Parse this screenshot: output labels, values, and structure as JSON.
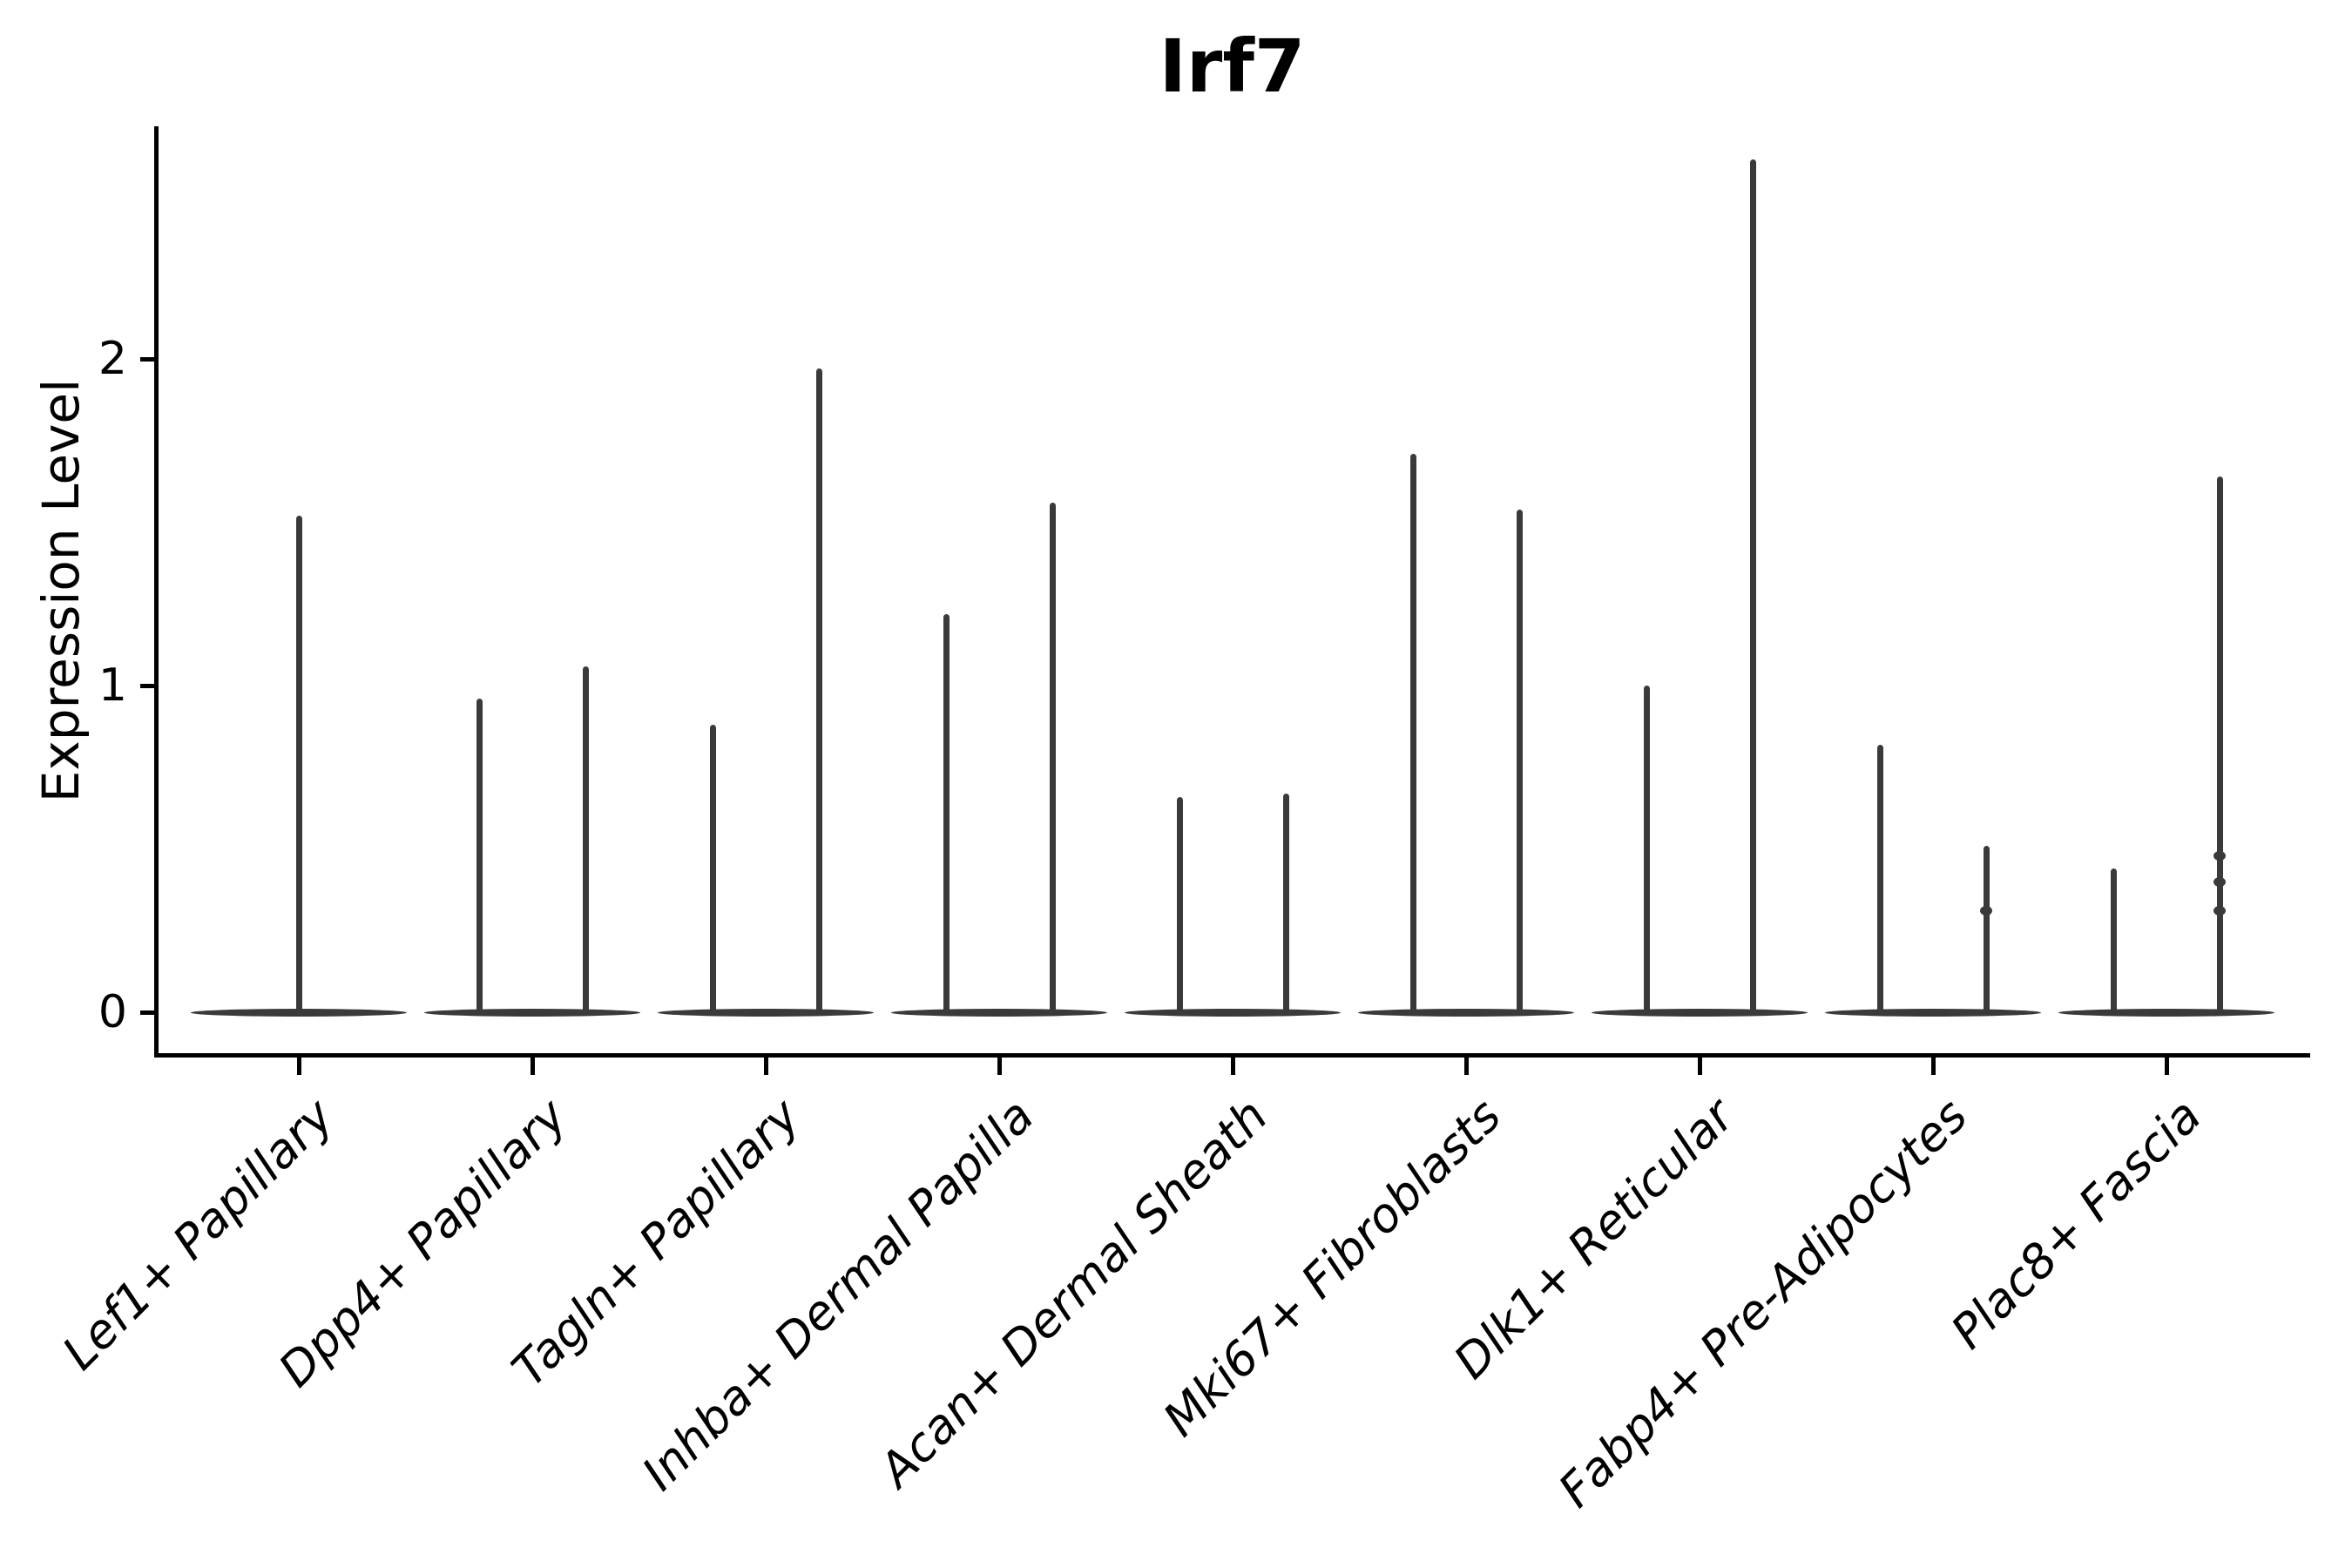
{
  "title": "Irf7",
  "y_axis": {
    "label": "Expression Level",
    "tick_labels": [
      "0",
      "1",
      "2"
    ]
  },
  "x_axis": {
    "tick_labels": [
      "Lef1+ Papillary",
      "Dpp4+ Papillary",
      "Tagln+ Papillary",
      "Inhba+ Dermal Papilla",
      "Acan+ Dermal Sheath",
      "Mki67+ Fibroblasts",
      "Dlk1+ Reticular",
      "Fabp4+ Pre-Adipocytes",
      "Plac8+ Fascia"
    ]
  },
  "chart_data": {
    "type": "violin",
    "title": "Irf7",
    "xlabel": "",
    "ylabel": "Expression Level",
    "ylim": [
      -0.12,
      2.72
    ],
    "yticks": [
      0,
      1,
      2
    ],
    "grid": false,
    "legend": false,
    "categories": [
      "Lef1+ Papillary",
      "Dpp4+ Papillary",
      "Tagln+ Papillary",
      "Inhba+ Dermal Papilla",
      "Acan+ Dermal Sheath",
      "Mki67+ Fibroblasts",
      "Dlk1+ Reticular",
      "Fabp4+ Pre-Adipocytes",
      "Plac8+ Fascia"
    ],
    "baseline_value": 0,
    "violins": [
      {
        "category": "Lef1+ Papillary",
        "spikes": [
          {
            "max": 1.52
          }
        ]
      },
      {
        "category": "Dpp4+ Papillary",
        "spikes": [
          {
            "max": 0.96
          },
          {
            "max": 1.06
          }
        ]
      },
      {
        "category": "Tagln+ Papillary",
        "spikes": [
          {
            "max": 0.88
          },
          {
            "max": 1.97
          }
        ]
      },
      {
        "category": "Inhba+ Dermal Papilla",
        "spikes": [
          {
            "max": 1.22
          },
          {
            "max": 1.56
          }
        ]
      },
      {
        "category": "Acan+ Dermal Sheath",
        "spikes": [
          {
            "max": 0.66
          },
          {
            "max": 0.67
          }
        ]
      },
      {
        "category": "Mki67+ Fibroblasts",
        "spikes": [
          {
            "max": 1.71
          },
          {
            "max": 1.54
          }
        ]
      },
      {
        "category": "Dlk1+ Reticular",
        "spikes": [
          {
            "max": 1.0
          },
          {
            "max": 2.61
          }
        ]
      },
      {
        "category": "Fabp4+ Pre-Adipocytes",
        "spikes": [
          {
            "max": 0.82
          },
          {
            "max": 0.51,
            "bumps": [
              0.31
            ]
          }
        ]
      },
      {
        "category": "Plac8+ Fascia",
        "spikes": [
          {
            "max": 0.44
          },
          {
            "max": 1.64,
            "bumps": [
              0.48,
              0.4,
              0.31
            ]
          }
        ]
      }
    ],
    "style": {
      "violin_color": "#3a3a3a",
      "axis_color": "#000000",
      "background": "#ffffff"
    }
  }
}
